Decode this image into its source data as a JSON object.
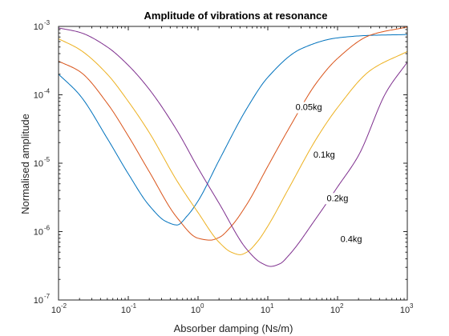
{
  "chart_data": {
    "type": "line",
    "title": "Amplitude of vibrations at resonance",
    "xlabel": "Absorber damping (Ns/m)",
    "ylabel": "Normalised amplitude",
    "xscale": "log",
    "yscale": "log",
    "xlim": [
      0.01,
      1000
    ],
    "ylim": [
      1e-07,
      0.001
    ],
    "grid": false,
    "box": true,
    "x_ticks": [
      {
        "base": "10",
        "exp": "-2",
        "value": 0.01
      },
      {
        "base": "10",
        "exp": "-1",
        "value": 0.1
      },
      {
        "base": "10",
        "exp": "0",
        "value": 1
      },
      {
        "base": "10",
        "exp": "1",
        "value": 10
      },
      {
        "base": "10",
        "exp": "2",
        "value": 100
      },
      {
        "base": "10",
        "exp": "3",
        "value": 1000
      }
    ],
    "y_ticks": [
      {
        "base": "10",
        "exp": "-7",
        "value": 1e-07
      },
      {
        "base": "10",
        "exp": "-6",
        "value": 1e-06
      },
      {
        "base": "10",
        "exp": "-5",
        "value": 1e-05
      },
      {
        "base": "10",
        "exp": "-4",
        "value": 0.0001
      },
      {
        "base": "10",
        "exp": "-3",
        "value": 0.001
      }
    ],
    "series": [
      {
        "name": "0.05kg",
        "color": "#0072BD",
        "x": [
          0.01,
          0.02,
          0.05,
          0.1,
          0.2,
          0.35,
          0.5,
          0.7,
          1,
          2,
          5,
          10,
          30,
          100,
          300,
          1000
        ],
        "y": [
          0.0002,
          0.0001,
          2.3e-05,
          7e-06,
          2.4e-06,
          1.4e-06,
          1.25e-06,
          1.7e-06,
          2.8e-06,
          1.1e-05,
          6.3e-05,
          0.00018,
          0.00047,
          0.00068,
          0.00074,
          0.00076
        ]
      },
      {
        "name": "0.1kg",
        "color": "#D95319",
        "x": [
          0.01,
          0.02,
          0.05,
          0.1,
          0.2,
          0.5,
          1,
          1.5,
          2,
          3,
          5,
          10,
          20,
          50,
          100,
          300,
          1000
        ],
        "y": [
          0.00031,
          0.00022,
          7.5e-05,
          2.5e-05,
          7.5e-06,
          1.6e-06,
          8e-07,
          7.5e-07,
          8.2e-07,
          1.2e-06,
          2.5e-06,
          9e-06,
          3.2e-05,
          0.00015,
          0.00034,
          0.00075,
          0.00098
        ]
      },
      {
        "name": "0.2kg",
        "color": "#EDB120",
        "x": [
          0.01,
          0.02,
          0.05,
          0.1,
          0.2,
          0.5,
          1,
          2,
          3,
          4,
          5,
          7,
          10,
          20,
          50,
          100,
          300,
          1000
        ],
        "y": [
          0.00066,
          0.00046,
          0.0002,
          8e-05,
          2.8e-05,
          5.5e-06,
          1.9e-06,
          7e-07,
          5e-07,
          4.6e-07,
          5e-07,
          7e-07,
          1.2e-06,
          4.3e-06,
          2.3e-05,
          6.5e-05,
          0.00023,
          0.00043
        ]
      },
      {
        "name": "0.4kg",
        "color": "#7E2F8E",
        "x": [
          0.01,
          0.02,
          0.05,
          0.1,
          0.2,
          0.5,
          1,
          2,
          5,
          8,
          11,
          15,
          20,
          50,
          100,
          200,
          500,
          1000
        ],
        "y": [
          0.00095,
          0.00082,
          0.0005,
          0.00027,
          0.00012,
          3e-05,
          8.5e-06,
          2.6e-06,
          5.5e-07,
          3.5e-07,
          3.1e-07,
          3.4e-07,
          4.5e-07,
          1.6e-06,
          4.5e-06,
          1.3e-05,
          0.00011,
          0.0003
        ]
      }
    ],
    "annotations": [
      {
        "text": "0.05kg",
        "x": 25,
        "y": 6e-05
      },
      {
        "text": "0.1kg",
        "x": 45,
        "y": 1.2e-05
      },
      {
        "text": "0.2kg",
        "x": 70,
        "y": 2.8e-06
      },
      {
        "text": "0.4kg",
        "x": 110,
        "y": 7e-07
      }
    ]
  }
}
